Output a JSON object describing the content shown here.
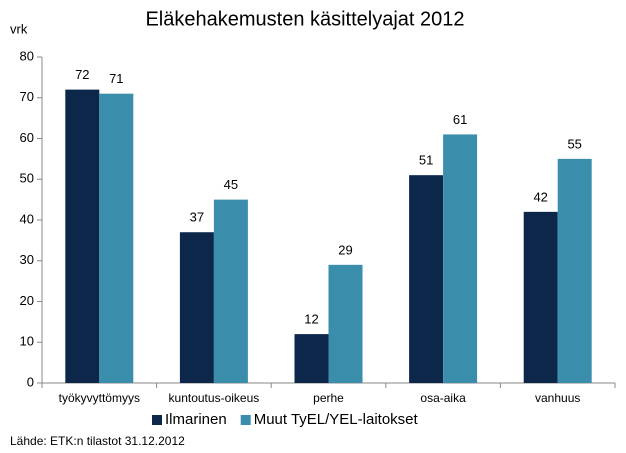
{
  "chart_data": {
    "type": "bar",
    "title": "Eläkehakemusten  käsittelyajat 2012",
    "y_label": "vrk",
    "categories": [
      "työkyvyttömyys",
      "kuntoutus-oikeus",
      "perhe",
      "osa-aika",
      "vanhuus"
    ],
    "series": [
      {
        "name": "Ilmarinen",
        "color": "#0c2749",
        "values": [
          72,
          37,
          12,
          51,
          42
        ]
      },
      {
        "name": "Muut TyEL/YEL-laitokset",
        "color": "#3b8eab",
        "values": [
          71,
          45,
          29,
          61,
          55
        ]
      }
    ],
    "ylim": [
      0,
      80
    ],
    "yticks": [
      0,
      10,
      20,
      30,
      40,
      50,
      60,
      70,
      80
    ],
    "grid": false,
    "legend": "bottom",
    "source": "Lähde: ETK:n tilastot 31.12.2012"
  }
}
